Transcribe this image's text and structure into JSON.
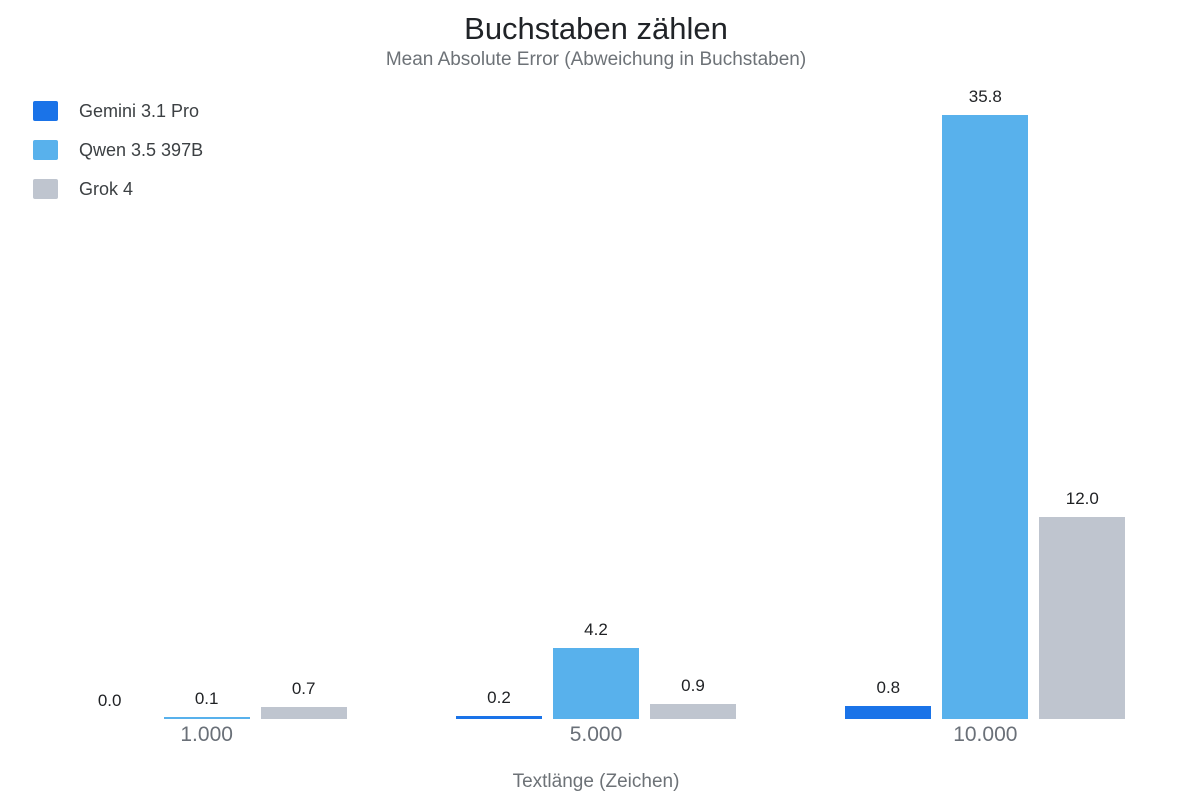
{
  "chart_data": {
    "type": "bar",
    "title": "Buchstaben zählen",
    "subtitle": "Mean Absolute Error (Abweichung in Buchstaben)",
    "xlabel": "Textlänge (Zeichen)",
    "ylabel": "",
    "categories": [
      "1.000",
      "5.000",
      "10.000"
    ],
    "series": [
      {
        "name": "Gemini 3.1 Pro",
        "color": "#1a73e8",
        "values": [
          0.0,
          0.2,
          0.8
        ]
      },
      {
        "name": "Qwen 3.5 397B",
        "color": "#58b1ec",
        "values": [
          0.1,
          4.2,
          35.8
        ]
      },
      {
        "name": "Grok 4",
        "color": "#bfc5cf",
        "values": [
          0.7,
          0.9,
          12.0
        ]
      }
    ],
    "ylim": [
      0,
      35.8
    ],
    "grid": false,
    "axes_visible": false,
    "legend_position": "top-left",
    "value_labels": true,
    "value_label_decimals": 1
  }
}
